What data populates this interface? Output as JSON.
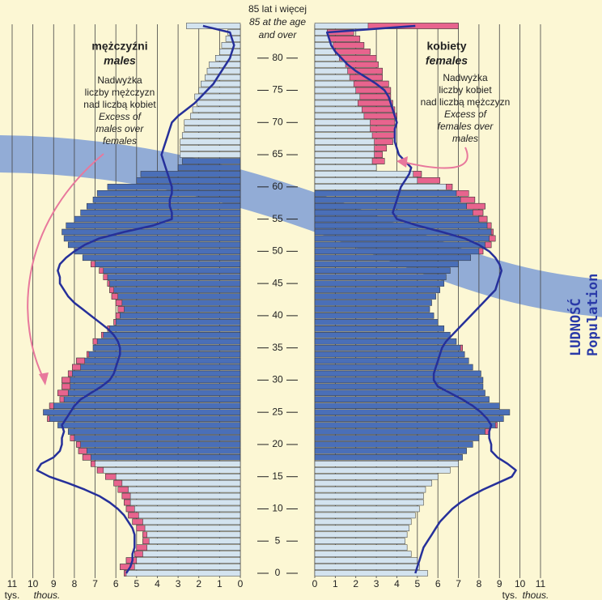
{
  "chart_data": {
    "type": "population_pyramid",
    "ages": [
      0,
      1,
      2,
      3,
      4,
      5,
      6,
      7,
      8,
      9,
      10,
      11,
      12,
      13,
      14,
      15,
      16,
      17,
      18,
      19,
      20,
      21,
      22,
      23,
      24,
      25,
      26,
      27,
      28,
      29,
      30,
      31,
      32,
      33,
      34,
      35,
      36,
      37,
      38,
      39,
      40,
      41,
      42,
      43,
      44,
      45,
      46,
      47,
      48,
      49,
      50,
      51,
      52,
      53,
      54,
      55,
      56,
      57,
      58,
      59,
      60,
      61,
      62,
      63,
      64,
      65,
      66,
      67,
      68,
      69,
      70,
      71,
      72,
      73,
      74,
      75,
      76,
      77,
      78,
      79,
      80,
      81,
      82,
      83,
      84,
      85
    ],
    "ylim": [
      0,
      85
    ],
    "yticks": [
      0,
      5,
      10,
      15,
      20,
      25,
      30,
      35,
      40,
      45,
      50,
      55,
      60,
      65,
      70,
      75,
      80
    ],
    "top_label": [
      "85 lat i więcej",
      "85 at the age",
      "and over"
    ],
    "xlim": [
      0,
      11
    ],
    "xticks": [
      0,
      1,
      2,
      3,
      4,
      5,
      6,
      7,
      8,
      9,
      10,
      11
    ],
    "unit_label": [
      "tys.",
      "thous."
    ],
    "grid": true,
    "excess_color": "#e8648e",
    "line_color": "#26309a",
    "series": [
      {
        "name": "mężczyźni",
        "name_en": "males",
        "side": "left",
        "color": "#d3e3ef",
        "working_color": "#4a6fb8",
        "working_ages": [
          18,
          64
        ],
        "values": [
          5.6,
          5.8,
          5.5,
          5.1,
          5.0,
          4.7,
          4.7,
          5.0,
          5.2,
          5.4,
          5.5,
          5.6,
          5.7,
          5.9,
          6.1,
          6.5,
          6.9,
          7.2,
          7.6,
          7.8,
          7.9,
          8.2,
          8.3,
          8.8,
          9.3,
          9.5,
          9.2,
          8.7,
          8.8,
          8.6,
          8.6,
          8.3,
          8.1,
          7.9,
          7.4,
          7.1,
          7.1,
          6.7,
          6.4,
          6.1,
          6.0,
          5.9,
          6.0,
          6.2,
          6.3,
          6.4,
          6.6,
          6.8,
          7.2,
          7.6,
          8.0,
          8.3,
          8.5,
          8.6,
          8.4,
          8.0,
          7.7,
          7.4,
          7.1,
          6.9,
          6.4,
          5.0,
          4.8,
          3.0,
          2.8,
          2.9,
          2.9,
          2.9,
          2.8,
          2.7,
          2.7,
          2.4,
          2.3,
          2.1,
          2.2,
          2.0,
          1.9,
          1.7,
          1.6,
          1.5,
          1.2,
          1.0,
          0.9,
          0.7,
          0.6,
          2.6
        ],
        "outline": [
          5.5,
          5.3,
          5.2,
          5.2,
          5.1,
          5.1,
          5.1,
          5.2,
          5.4,
          5.6,
          5.9,
          6.3,
          6.8,
          7.5,
          8.3,
          9.2,
          9.8,
          9.6,
          9.0,
          8.7,
          8.6,
          8.6,
          8.5,
          8.6,
          8.4,
          8.2,
          8.0,
          7.7,
          7.2,
          6.7,
          6.3,
          6.1,
          6.0,
          5.9,
          5.8,
          5.8,
          5.9,
          6.1,
          6.4,
          6.8,
          7.2,
          7.6,
          8.0,
          8.3,
          8.5,
          8.7,
          8.7,
          8.8,
          8.7,
          8.4,
          8.0,
          7.5,
          6.8,
          5.6,
          4.2,
          3.3,
          3.3,
          3.4,
          3.4,
          3.3,
          3.3,
          3.4,
          3.5,
          3.6,
          3.7,
          3.8,
          3.7,
          3.6,
          3.5,
          3.4,
          3.3,
          3.0,
          2.6,
          2.2,
          1.9,
          1.6,
          1.3,
          1.1,
          0.9,
          0.7,
          0.5,
          0.4,
          0.3,
          0.4,
          0.5,
          1.8
        ],
        "note": [
          "Nadwyżka",
          "liczby mężczyzn",
          "nad liczbą kobiet",
          "Excess of",
          "males over",
          "females"
        ]
      },
      {
        "name": "kobiety",
        "name_en": "females",
        "side": "right",
        "color": "#d3e3ef",
        "working_color": "#4a6fb8",
        "working_ages": [
          18,
          59
        ],
        "values": [
          5.5,
          5.1,
          5.0,
          4.7,
          4.5,
          4.4,
          4.5,
          4.6,
          4.7,
          4.9,
          5.1,
          5.3,
          5.3,
          5.4,
          5.7,
          6.0,
          6.6,
          7.0,
          7.2,
          7.4,
          7.7,
          8.0,
          8.5,
          8.9,
          9.2,
          9.5,
          9.0,
          8.5,
          8.3,
          8.2,
          8.2,
          8.1,
          7.7,
          7.5,
          7.3,
          7.2,
          6.9,
          6.6,
          6.3,
          6.0,
          5.8,
          5.6,
          5.7,
          5.9,
          6.1,
          6.3,
          6.4,
          6.6,
          7.0,
          7.6,
          8.2,
          8.6,
          8.8,
          8.7,
          8.6,
          8.4,
          8.2,
          8.3,
          7.8,
          7.5,
          6.7,
          6.1,
          5.2,
          3.0,
          3.4,
          3.3,
          3.5,
          3.8,
          3.9,
          3.9,
          3.9,
          4.0,
          3.9,
          3.8,
          3.7,
          3.7,
          3.6,
          3.3,
          3.3,
          3.1,
          3.0,
          2.7,
          2.4,
          2.2,
          1.9,
          7.0
        ],
        "outline": [
          4.9,
          5.0,
          5.1,
          5.2,
          5.3,
          5.5,
          5.7,
          5.9,
          6.1,
          6.4,
          6.7,
          7.1,
          7.6,
          8.2,
          8.9,
          9.6,
          9.8,
          9.4,
          8.9,
          8.6,
          8.6,
          8.5,
          8.5,
          8.6,
          8.4,
          8.1,
          7.7,
          7.2,
          6.6,
          6.0,
          5.8,
          5.8,
          5.9,
          6.0,
          6.1,
          6.2,
          6.4,
          6.7,
          7.0,
          7.3,
          7.6,
          7.9,
          8.2,
          8.5,
          8.8,
          8.9,
          9.0,
          9.1,
          9.0,
          8.8,
          8.5,
          8.0,
          7.3,
          6.2,
          5.0,
          4.0,
          3.8,
          3.9,
          4.0,
          4.1,
          4.2,
          4.4,
          4.6,
          4.7,
          4.4,
          4.1,
          4.0,
          3.9,
          3.9,
          3.9,
          4.0,
          3.9,
          3.8,
          3.7,
          3.6,
          3.4,
          3.0,
          2.5,
          2.0,
          1.6,
          1.3,
          1.0,
          0.8,
          0.7,
          0.6,
          4.9
        ],
        "note": [
          "Nadwyżka",
          "liczby kobiet",
          "nad liczbą mężczyzn",
          "Excess of",
          "females over",
          "males"
        ]
      }
    ],
    "side_title": [
      "LUDNOŚĆ",
      "Population"
    ]
  }
}
